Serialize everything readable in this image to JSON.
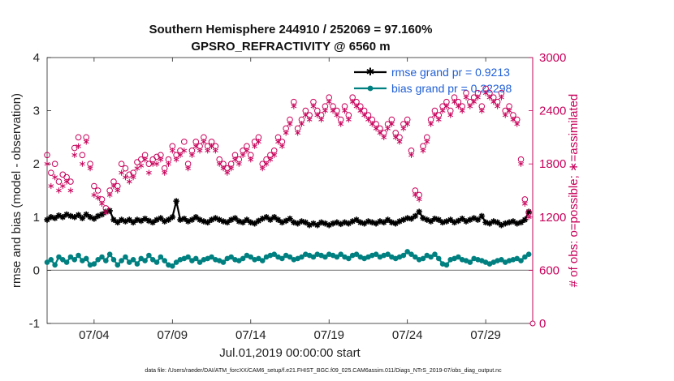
{
  "chart_data": {
    "type": "line",
    "title_line1": "Southern Hemisphere 244910 / 252069 = 97.160%",
    "title_line2": "GPSRO_REFRACTIVITY @ 6560 m",
    "xlabel": "Jul.01,2019 00:00:00 start",
    "ylabel_left": "rmse and bias (model - observation)",
    "ylabel_right": "# of obs: o=possible; ∗=assimilated",
    "footnote": "data file: /Users/raeder/DAI/ATM_forcXX/CAM6_setup/f.e21.FHIST_BGC.f09_025.CAM6assim.011/Diags_NTrS_2019-07/obs_diag_output.nc",
    "xlim": [
      1,
      32
    ],
    "ylim_left": [
      -1,
      4
    ],
    "ylim_right": [
      0,
      3000
    ],
    "x_ticks": [
      {
        "x": 4,
        "label": "07/04"
      },
      {
        "x": 9,
        "label": "07/09"
      },
      {
        "x": 14,
        "label": "07/14"
      },
      {
        "x": 19,
        "label": "07/19"
      },
      {
        "x": 24,
        "label": "07/24"
      },
      {
        "x": 29,
        "label": "07/29"
      }
    ],
    "y_ticks_left": [
      "-1",
      "0",
      "1",
      "2",
      "3",
      "4"
    ],
    "y_ticks_right": [
      "0",
      "600",
      "1200",
      "1800",
      "2400",
      "3000"
    ],
    "series": [
      {
        "name": "rmse grand pr = 0.9213",
        "axis": "left",
        "color": "#000000",
        "marker": "star",
        "x": [
          1.0,
          1.25,
          1.5,
          1.75,
          2.0,
          2.25,
          2.5,
          2.75,
          3.0,
          3.25,
          3.5,
          3.75,
          4.0,
          4.25,
          4.5,
          4.75,
          5.0,
          5.25,
          5.5,
          5.75,
          6.0,
          6.25,
          6.5,
          6.75,
          7.0,
          7.25,
          7.5,
          7.75,
          8.0,
          8.25,
          8.5,
          8.75,
          9.0,
          9.25,
          9.5,
          9.75,
          10.0,
          10.25,
          10.5,
          10.75,
          11.0,
          11.25,
          11.5,
          11.75,
          12.0,
          12.25,
          12.5,
          12.75,
          13.0,
          13.25,
          13.5,
          13.75,
          14.0,
          14.25,
          14.5,
          14.75,
          15.0,
          15.25,
          15.5,
          15.75,
          16.0,
          16.25,
          16.5,
          16.75,
          17.0,
          17.25,
          17.5,
          17.75,
          18.0,
          18.25,
          18.5,
          18.75,
          19.0,
          19.25,
          19.5,
          19.75,
          20.0,
          20.25,
          20.5,
          20.75,
          21.0,
          21.25,
          21.5,
          21.75,
          22.0,
          22.25,
          22.5,
          22.75,
          23.0,
          23.25,
          23.5,
          23.75,
          24.0,
          24.25,
          24.5,
          24.75,
          25.0,
          25.25,
          25.5,
          25.75,
          26.0,
          26.25,
          26.5,
          26.75,
          27.0,
          27.25,
          27.5,
          27.75,
          28.0,
          28.25,
          28.5,
          28.75,
          29.0,
          29.25,
          29.5,
          29.75,
          30.0,
          30.25,
          30.5,
          30.75,
          31.0,
          31.25,
          31.5,
          31.75
        ],
        "values": [
          0.95,
          1.0,
          0.98,
          1.03,
          1.0,
          1.05,
          1.02,
          1.0,
          1.04,
          0.98,
          1.05,
          1.0,
          0.97,
          1.02,
          1.05,
          1.1,
          1.12,
          0.95,
          0.9,
          0.95,
          0.92,
          0.95,
          0.9,
          0.95,
          0.93,
          0.97,
          0.93,
          0.9,
          0.95,
          0.98,
          0.92,
          0.95,
          1.0,
          1.3,
          0.95,
          0.97,
          0.92,
          0.95,
          1.0,
          0.95,
          0.92,
          0.9,
          0.95,
          0.98,
          0.95,
          0.92,
          0.9,
          0.95,
          0.98,
          0.92,
          0.9,
          0.95,
          0.9,
          0.88,
          0.93,
          0.97,
          1.0,
          0.95,
          1.0,
          0.95,
          0.9,
          0.93,
          0.97,
          0.9,
          0.88,
          0.92,
          0.9,
          0.85,
          0.88,
          0.85,
          0.9,
          0.88,
          0.85,
          0.88,
          0.9,
          0.87,
          0.9,
          0.88,
          0.92,
          0.95,
          0.9,
          0.88,
          0.92,
          0.9,
          0.88,
          0.92,
          0.9,
          0.95,
          0.9,
          0.88,
          0.92,
          0.95,
          0.98,
          0.97,
          1.02,
          1.1,
          0.98,
          0.95,
          0.92,
          0.97,
          0.95,
          0.9,
          0.92,
          0.95,
          0.9,
          0.93,
          0.97,
          0.92,
          0.95,
          0.98,
          0.95,
          1.02,
          0.9,
          0.88,
          0.92,
          0.9,
          0.85,
          0.88,
          0.9,
          0.92,
          0.88,
          0.9,
          0.95,
          1.1
        ]
      },
      {
        "name": "bias grand pr = 0.22298",
        "axis": "left",
        "color": "#008080",
        "marker": "dot",
        "x": [
          1.0,
          1.25,
          1.5,
          1.75,
          2.0,
          2.25,
          2.5,
          2.75,
          3.0,
          3.25,
          3.5,
          3.75,
          4.0,
          4.25,
          4.5,
          4.75,
          5.0,
          5.25,
          5.5,
          5.75,
          6.0,
          6.25,
          6.5,
          6.75,
          7.0,
          7.25,
          7.5,
          7.75,
          8.0,
          8.25,
          8.5,
          8.75,
          9.0,
          9.25,
          9.5,
          9.75,
          10.0,
          10.25,
          10.5,
          10.75,
          11.0,
          11.25,
          11.5,
          11.75,
          12.0,
          12.25,
          12.5,
          12.75,
          13.0,
          13.25,
          13.5,
          13.75,
          14.0,
          14.25,
          14.5,
          14.75,
          15.0,
          15.25,
          15.5,
          15.75,
          16.0,
          16.25,
          16.5,
          16.75,
          17.0,
          17.25,
          17.5,
          17.75,
          18.0,
          18.25,
          18.5,
          18.75,
          19.0,
          19.25,
          19.5,
          19.75,
          20.0,
          20.25,
          20.5,
          20.75,
          21.0,
          21.25,
          21.5,
          21.75,
          22.0,
          22.25,
          22.5,
          22.75,
          23.0,
          23.25,
          23.5,
          23.75,
          24.0,
          24.25,
          24.5,
          24.75,
          25.0,
          25.25,
          25.5,
          25.75,
          26.0,
          26.25,
          26.5,
          26.75,
          27.0,
          27.25,
          27.5,
          27.75,
          28.0,
          28.25,
          28.5,
          28.75,
          29.0,
          29.25,
          29.5,
          29.75,
          30.0,
          30.25,
          30.5,
          30.75,
          31.0,
          31.25,
          31.5,
          31.75
        ],
        "values": [
          0.15,
          0.2,
          0.1,
          0.25,
          0.2,
          0.15,
          0.25,
          0.2,
          0.28,
          0.18,
          0.22,
          0.1,
          0.12,
          0.2,
          0.25,
          0.18,
          0.3,
          0.2,
          0.1,
          0.18,
          0.25,
          0.15,
          0.2,
          0.12,
          0.22,
          0.18,
          0.28,
          0.2,
          0.15,
          0.25,
          0.18,
          0.1,
          0.08,
          0.15,
          0.2,
          0.22,
          0.25,
          0.18,
          0.22,
          0.15,
          0.2,
          0.22,
          0.25,
          0.2,
          0.18,
          0.15,
          0.22,
          0.25,
          0.2,
          0.18,
          0.22,
          0.28,
          0.25,
          0.2,
          0.22,
          0.18,
          0.25,
          0.28,
          0.3,
          0.25,
          0.22,
          0.28,
          0.25,
          0.2,
          0.22,
          0.25,
          0.3,
          0.28,
          0.25,
          0.3,
          0.28,
          0.25,
          0.3,
          0.28,
          0.25,
          0.3,
          0.25,
          0.22,
          0.28,
          0.3,
          0.25,
          0.22,
          0.25,
          0.28,
          0.3,
          0.25,
          0.28,
          0.3,
          0.25,
          0.22,
          0.25,
          0.28,
          0.35,
          0.3,
          0.25,
          0.2,
          0.22,
          0.28,
          0.25,
          0.3,
          0.22,
          0.12,
          0.1,
          0.2,
          0.22,
          0.25,
          0.2,
          0.18,
          0.15,
          0.22,
          0.2,
          0.18,
          0.15,
          0.12,
          0.15,
          0.18,
          0.2,
          0.15,
          0.18,
          0.2,
          0.22,
          0.18,
          0.25,
          0.3
        ]
      },
      {
        "name": "possible",
        "axis": "right",
        "color": "#c8005a",
        "marker": "circle",
        "x": [
          1.0,
          1.25,
          1.5,
          1.75,
          2.0,
          2.25,
          2.5,
          2.75,
          3.0,
          3.25,
          3.5,
          3.75,
          4.0,
          4.25,
          4.5,
          4.75,
          5.0,
          5.25,
          5.5,
          5.75,
          6.0,
          6.25,
          6.5,
          6.75,
          7.0,
          7.25,
          7.5,
          7.75,
          8.0,
          8.25,
          8.5,
          8.75,
          9.0,
          9.25,
          9.5,
          9.75,
          10.0,
          10.25,
          10.5,
          10.75,
          11.0,
          11.25,
          11.5,
          11.75,
          12.0,
          12.25,
          12.5,
          12.75,
          13.0,
          13.25,
          13.5,
          13.75,
          14.0,
          14.25,
          14.5,
          14.75,
          15.0,
          15.25,
          15.5,
          15.75,
          16.0,
          16.25,
          16.5,
          16.75,
          17.0,
          17.25,
          17.5,
          17.75,
          18.0,
          18.25,
          18.5,
          18.75,
          19.0,
          19.25,
          19.5,
          19.75,
          20.0,
          20.25,
          20.5,
          20.75,
          21.0,
          21.25,
          21.5,
          21.75,
          22.0,
          22.25,
          22.5,
          22.75,
          23.0,
          23.25,
          23.5,
          23.75,
          24.0,
          24.25,
          24.5,
          24.75,
          25.0,
          25.25,
          25.5,
          25.75,
          26.0,
          26.25,
          26.5,
          26.75,
          27.0,
          27.25,
          27.5,
          27.75,
          28.0,
          28.25,
          28.5,
          28.75,
          29.0,
          29.25,
          29.5,
          29.75,
          30.0,
          30.25,
          30.5,
          30.75,
          31.0,
          31.25,
          31.5,
          31.75
        ],
        "values": [
          1900,
          1700,
          1800,
          1600,
          1680,
          1650,
          1600,
          1980,
          2100,
          1900,
          2100,
          1800,
          1550,
          1500,
          1400,
          1300,
          1500,
          1600,
          1550,
          1800,
          1750,
          1680,
          1700,
          1820,
          1850,
          1900,
          1800,
          1850,
          1880,
          1900,
          1750,
          1850,
          2000,
          1900,
          1950,
          2050,
          1800,
          1950,
          2050,
          2000,
          2100,
          2000,
          2050,
          2000,
          1850,
          1800,
          1750,
          1800,
          1900,
          1850,
          1950,
          2000,
          1900,
          2050,
          2100,
          1800,
          1850,
          1900,
          1950,
          2100,
          2050,
          2200,
          2300,
          2500,
          2200,
          2300,
          2400,
          2350,
          2500,
          2400,
          2350,
          2450,
          2550,
          2450,
          2400,
          2300,
          2450,
          2350,
          2550,
          2500,
          2450,
          2400,
          2350,
          2300,
          2250,
          2200,
          2150,
          2250,
          2300,
          2150,
          2100,
          2250,
          2300,
          1950,
          1500,
          1450,
          2000,
          2100,
          2300,
          2400,
          2350,
          2450,
          2500,
          2400,
          2550,
          2500,
          2450,
          2600,
          2500,
          2550,
          2600,
          2450,
          2650,
          2600,
          2550,
          2500,
          2600,
          2400,
          2450,
          2350,
          2300,
          1850,
          1400,
          1250
        ]
      },
      {
        "name": "assimilated",
        "axis": "right",
        "color": "#c8005a",
        "marker": "asterisk",
        "x": [
          1.0,
          1.25,
          1.5,
          1.75,
          2.0,
          2.25,
          2.5,
          2.75,
          3.0,
          3.25,
          3.5,
          3.75,
          4.0,
          4.25,
          4.5,
          4.75,
          5.0,
          5.25,
          5.5,
          5.75,
          6.0,
          6.25,
          6.5,
          6.75,
          7.0,
          7.25,
          7.5,
          7.75,
          8.0,
          8.25,
          8.5,
          8.75,
          9.0,
          9.25,
          9.5,
          9.75,
          10.0,
          10.25,
          10.5,
          10.75,
          11.0,
          11.25,
          11.5,
          11.75,
          12.0,
          12.25,
          12.5,
          12.75,
          13.0,
          13.25,
          13.5,
          13.75,
          14.0,
          14.25,
          14.5,
          14.75,
          15.0,
          15.25,
          15.5,
          15.75,
          16.0,
          16.25,
          16.5,
          16.75,
          17.0,
          17.25,
          17.5,
          17.75,
          18.0,
          18.25,
          18.5,
          18.75,
          19.0,
          19.25,
          19.5,
          19.75,
          20.0,
          20.25,
          20.5,
          20.75,
          21.0,
          21.25,
          21.5,
          21.75,
          22.0,
          22.25,
          22.5,
          22.75,
          23.0,
          23.25,
          23.5,
          23.75,
          24.0,
          24.25,
          24.5,
          24.75,
          25.0,
          25.25,
          25.5,
          25.75,
          26.0,
          26.25,
          26.5,
          26.75,
          27.0,
          27.25,
          27.5,
          27.75,
          28.0,
          28.25,
          28.5,
          28.75,
          29.0,
          29.25,
          29.5,
          29.75,
          30.0,
          30.25,
          30.5,
          30.75,
          31.0,
          31.25,
          31.5,
          31.75
        ],
        "values": [
          1800,
          1550,
          1650,
          1500,
          1550,
          1600,
          1500,
          1900,
          2000,
          1800,
          2050,
          1750,
          1450,
          1420,
          1350,
          1250,
          1450,
          1550,
          1500,
          1700,
          1650,
          1600,
          1650,
          1750,
          1780,
          1850,
          1700,
          1800,
          1800,
          1850,
          1700,
          1800,
          1950,
          1850,
          1900,
          1950,
          1750,
          1900,
          2000,
          1950,
          2050,
          1950,
          2000,
          1950,
          1800,
          1750,
          1700,
          1750,
          1850,
          1800,
          1900,
          1950,
          1850,
          2000,
          2050,
          1750,
          1800,
          1850,
          1900,
          2050,
          2000,
          2150,
          2250,
          2450,
          2150,
          2250,
          2350,
          2300,
          2450,
          2350,
          2300,
          2400,
          2500,
          2400,
          2350,
          2250,
          2400,
          2300,
          2500,
          2450,
          2400,
          2350,
          2300,
          2250,
          2200,
          2150,
          2100,
          2200,
          2250,
          2100,
          2050,
          2200,
          2250,
          1900,
          1450,
          1400,
          1950,
          2050,
          2250,
          2350,
          2300,
          2400,
          2450,
          2350,
          2500,
          2450,
          2400,
          2550,
          2450,
          2500,
          2550,
          2400,
          2600,
          2550,
          2500,
          2450,
          2550,
          2350,
          2400,
          2300,
          2250,
          1800,
          1350,
          1200
        ]
      }
    ]
  }
}
